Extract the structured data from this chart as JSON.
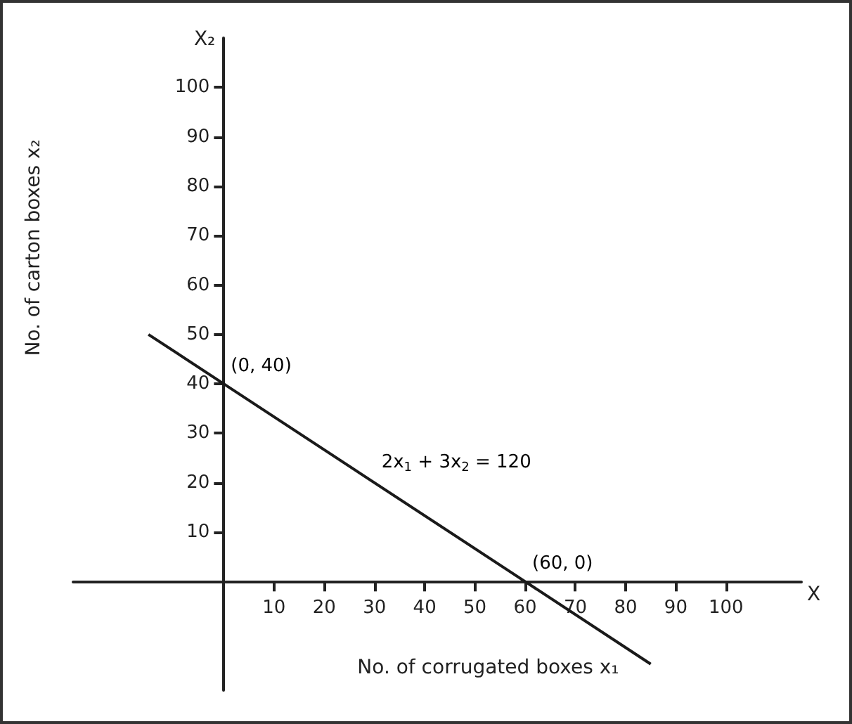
{
  "chart_data": {
    "type": "line",
    "xlabel": "No. of corrugated boxes x₁",
    "ylabel": "No. of carton boxes x₂",
    "x": [
      -15,
      0,
      60,
      85
    ],
    "series": [
      {
        "color": "#1a1a1a",
        "values": [
          50,
          40,
          0,
          -16.7
        ]
      }
    ],
    "xlim": [
      -30,
      115
    ],
    "ylim": [
      -22,
      110
    ],
    "xticks": [
      10,
      20,
      30,
      40,
      50,
      60,
      70,
      80,
      90,
      100
    ],
    "yticks": [
      10,
      20,
      30,
      40,
      50,
      60,
      70,
      80,
      90,
      100
    ],
    "annotations": [
      "X₂",
      "X",
      {
        "text": "(0, 40)",
        "x": 0,
        "y": 40
      },
      {
        "text": "(60, 0)",
        "x": 60,
        "y": 0
      },
      {
        "text": "2x$_{1}$ + 3x$_{2}$ = 120",
        "x": 30,
        "y": 20
      }
    ],
    "grid": false,
    "marker": "none",
    "line_style": "solid"
  }
}
